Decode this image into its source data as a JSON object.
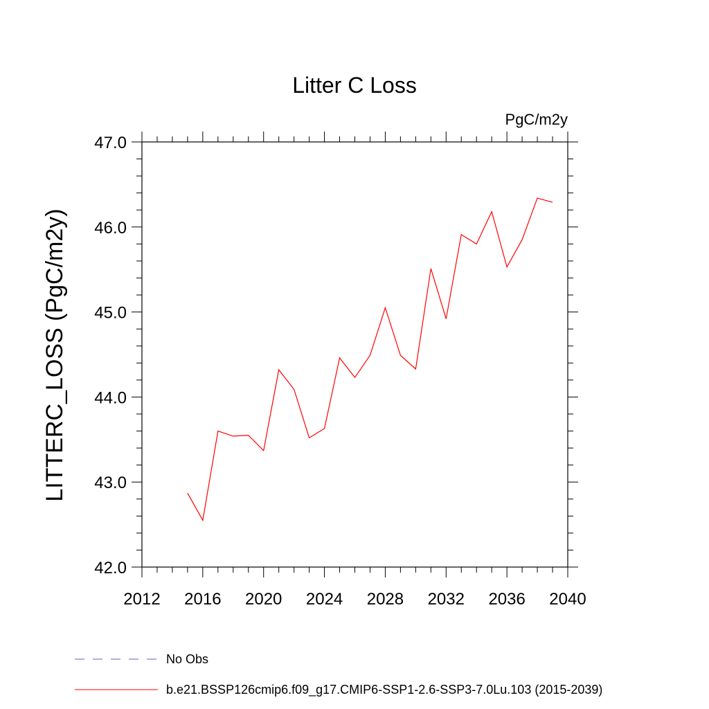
{
  "chart_data": {
    "type": "line",
    "title": "Litter C Loss",
    "units_label": "PgC/m2y",
    "ylabel": "LITTERC_LOSS  (PgC/m2y)",
    "xlabel": "",
    "xlim": [
      2012,
      2040
    ],
    "ylim": [
      42.0,
      47.0
    ],
    "x_ticks": [
      2012,
      2016,
      2020,
      2024,
      2028,
      2032,
      2036,
      2040
    ],
    "x_tick_labels": [
      "2012",
      "2016",
      "2020",
      "2024",
      "2028",
      "2032",
      "2036",
      "2040"
    ],
    "y_ticks": [
      42.0,
      43.0,
      44.0,
      45.0,
      46.0,
      47.0
    ],
    "y_tick_labels": [
      "42.0",
      "43.0",
      "44.0",
      "45.0",
      "46.0",
      "47.0"
    ],
    "grid": false,
    "legend_position": "bottom",
    "series": [
      {
        "name": "b.e21.BSSP126cmip6.f09_g17.CMIP6-SSP1-2.6-SSP3-7.0Lu.103 (2015-2039)",
        "color": "#ff0000",
        "dash": "solid",
        "x": [
          2015,
          2016,
          2017,
          2018,
          2019,
          2020,
          2021,
          2022,
          2023,
          2024,
          2025,
          2026,
          2027,
          2028,
          2029,
          2030,
          2031,
          2032,
          2033,
          2034,
          2035,
          2036,
          2037,
          2038,
          2039
        ],
        "y": [
          42.87,
          42.55,
          43.6,
          43.54,
          43.55,
          43.37,
          44.32,
          44.09,
          43.52,
          43.63,
          44.46,
          44.23,
          44.49,
          45.05,
          44.49,
          44.33,
          45.51,
          44.92,
          45.91,
          45.8,
          46.18,
          45.53,
          45.85,
          46.34,
          46.29
        ]
      }
    ],
    "legend": [
      {
        "label": "No Obs",
        "color": "#6a5acd",
        "dash": "dashed"
      },
      {
        "label": "b.e21.BSSP126cmip6.f09_g17.CMIP6-SSP1-2.6-SSP3-7.0Lu.103 (2015-2039)",
        "color": "#ff0000",
        "dash": "solid"
      }
    ]
  }
}
